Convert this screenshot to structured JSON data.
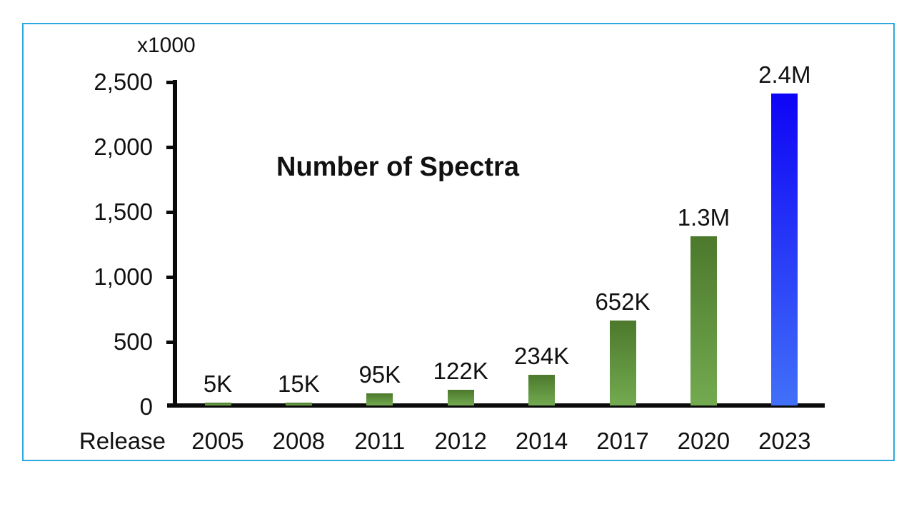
{
  "chart_data": {
    "type": "bar",
    "title": "Number of Spectra",
    "unit_label": "x1000",
    "x_prefix_label": "Release",
    "categories": [
      "2005",
      "2008",
      "2011",
      "2012",
      "2014",
      "2017",
      "2020",
      "2023"
    ],
    "values": [
      5,
      15,
      95,
      122,
      234,
      652,
      1300,
      2400
    ],
    "bar_labels": [
      "5K",
      "15K",
      "95K",
      "122K",
      "234K",
      "652K",
      "1.3M",
      "2.4M"
    ],
    "y_tick_values": [
      0,
      500,
      1000,
      1500,
      2000,
      2500
    ],
    "y_tick_labels": [
      "0",
      "500",
      "1,000",
      "1,500",
      "2,000",
      "2,500"
    ],
    "ylim": [
      0,
      2500
    ],
    "grid": "off",
    "legend": "none",
    "bar_styles": [
      "green",
      "green",
      "green",
      "green",
      "green",
      "green",
      "green",
      "blue"
    ],
    "colors": {
      "green_top": "#4c792c",
      "green_bottom": "#73aa50",
      "blue_top": "#0e04f6",
      "blue_bottom": "#4170f8",
      "axis": "#0a0a0a",
      "frame_border": "#2ea9df",
      "text": "#111111"
    }
  }
}
